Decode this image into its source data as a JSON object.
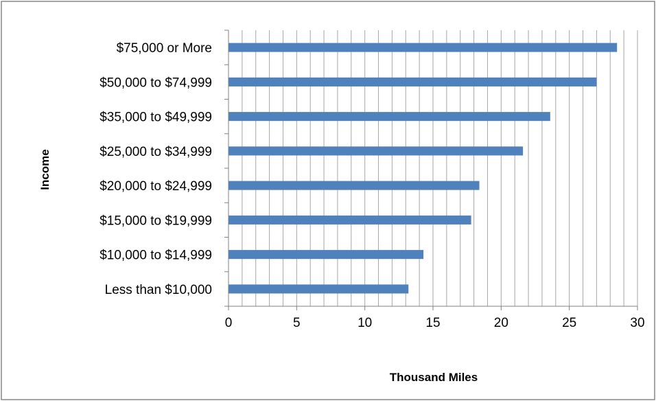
{
  "chart_data": {
    "type": "bar",
    "orientation": "horizontal",
    "categories": [
      "Less than $10,000",
      "$10,000 to $14,999",
      "$15,000 to $19,999",
      "$20,000 to $24,999",
      "$25,000 to $34,999",
      "$35,000 to $49,999",
      "$50,000 to $74,999",
      "$75,000 or More"
    ],
    "values": [
      13.2,
      14.3,
      17.8,
      18.4,
      21.6,
      23.6,
      27.0,
      28.5
    ],
    "title": "",
    "xlabel": "Thousand Miles",
    "ylabel": "Income",
    "xlim": [
      0,
      30
    ],
    "xticks": [
      0,
      5,
      10,
      15,
      20,
      25,
      30
    ],
    "xtick_labels": [
      "0",
      "5",
      "10",
      "15",
      "20",
      "25",
      "30"
    ],
    "minor_gridline_step": 1,
    "grid": true,
    "legend": "none",
    "colors": {
      "bar": "#4f81bd",
      "gridline": "#a6a6a6",
      "axis": "#808080",
      "border": "#868686"
    }
  }
}
